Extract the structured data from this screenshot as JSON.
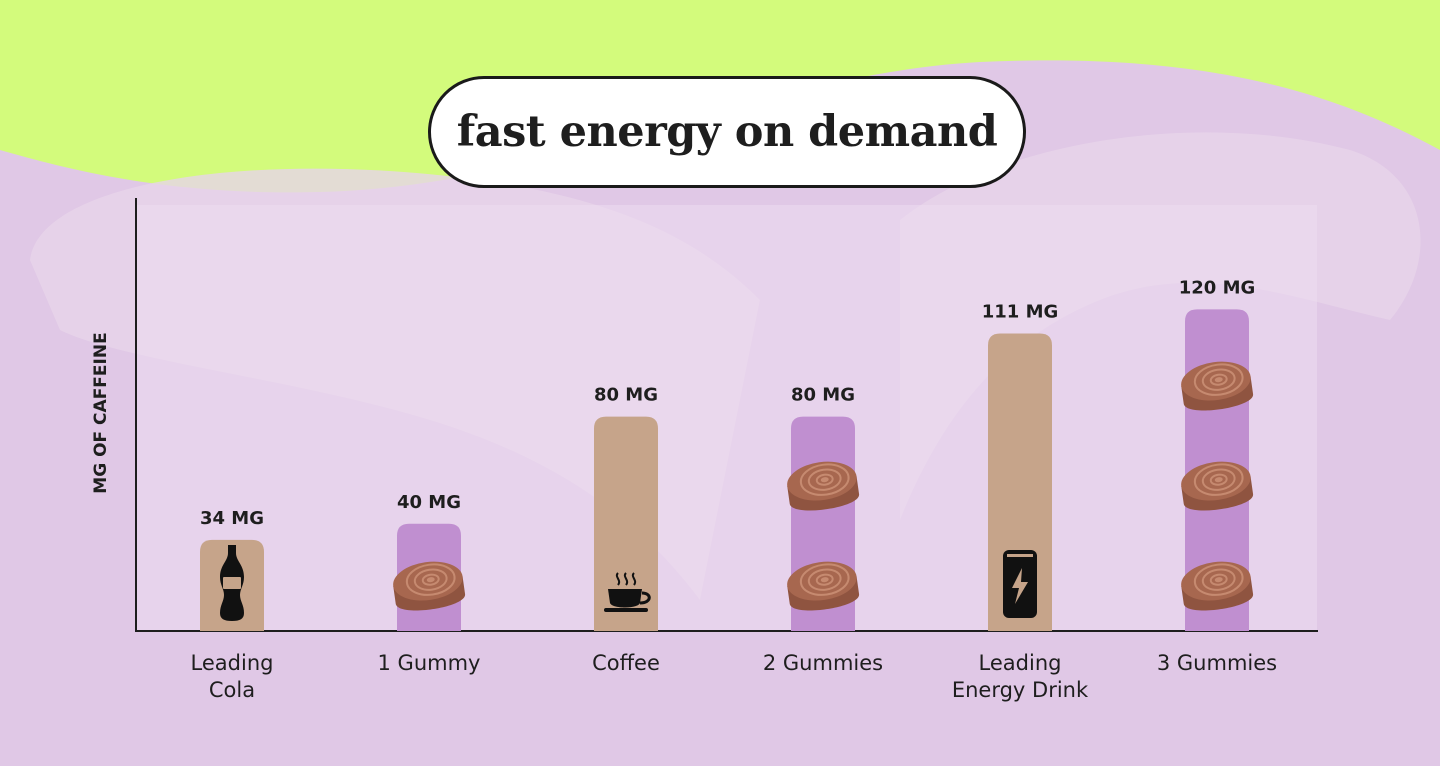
{
  "title": "fast energy on demand",
  "colors": {
    "lime": "#d3fb7c",
    "lavender": "#e0c8e6",
    "drink_bar": "#c6a48a",
    "gummy_bar": "#c08fd0",
    "gummy": "#a7674f",
    "ink": "#1e1e1e"
  },
  "chart_data": {
    "type": "bar",
    "title": "fast energy on demand",
    "ylabel": "MG OF CAFFEINE",
    "xlabel": "",
    "ylim": [
      0,
      130
    ],
    "grid": false,
    "categories": [
      {
        "lines": [
          "Leading",
          "Cola"
        ],
        "value": 34,
        "label": "34 MG",
        "kind": "drink",
        "icon": "soda-bottle-icon",
        "gummies": 0
      },
      {
        "lines": [
          "1 Gummy"
        ],
        "value": 40,
        "label": "40 MG",
        "kind": "gummy",
        "icon": "gummy-icon",
        "gummies": 1
      },
      {
        "lines": [
          "Coffee"
        ],
        "value": 80,
        "label": "80 MG",
        "kind": "drink",
        "icon": "coffee-cup-icon",
        "gummies": 0
      },
      {
        "lines": [
          "2 Gummies"
        ],
        "value": 80,
        "label": "80 MG",
        "kind": "gummy",
        "icon": "gummy-icon",
        "gummies": 2
      },
      {
        "lines": [
          "Leading",
          "Energy Drink"
        ],
        "value": 111,
        "label": "111 MG",
        "kind": "drink",
        "icon": "energy-can-icon",
        "gummies": 0
      },
      {
        "lines": [
          "3 Gummies"
        ],
        "value": 120,
        "label": "120 MG",
        "kind": "gummy",
        "icon": "gummy-icon",
        "gummies": 3
      }
    ]
  }
}
